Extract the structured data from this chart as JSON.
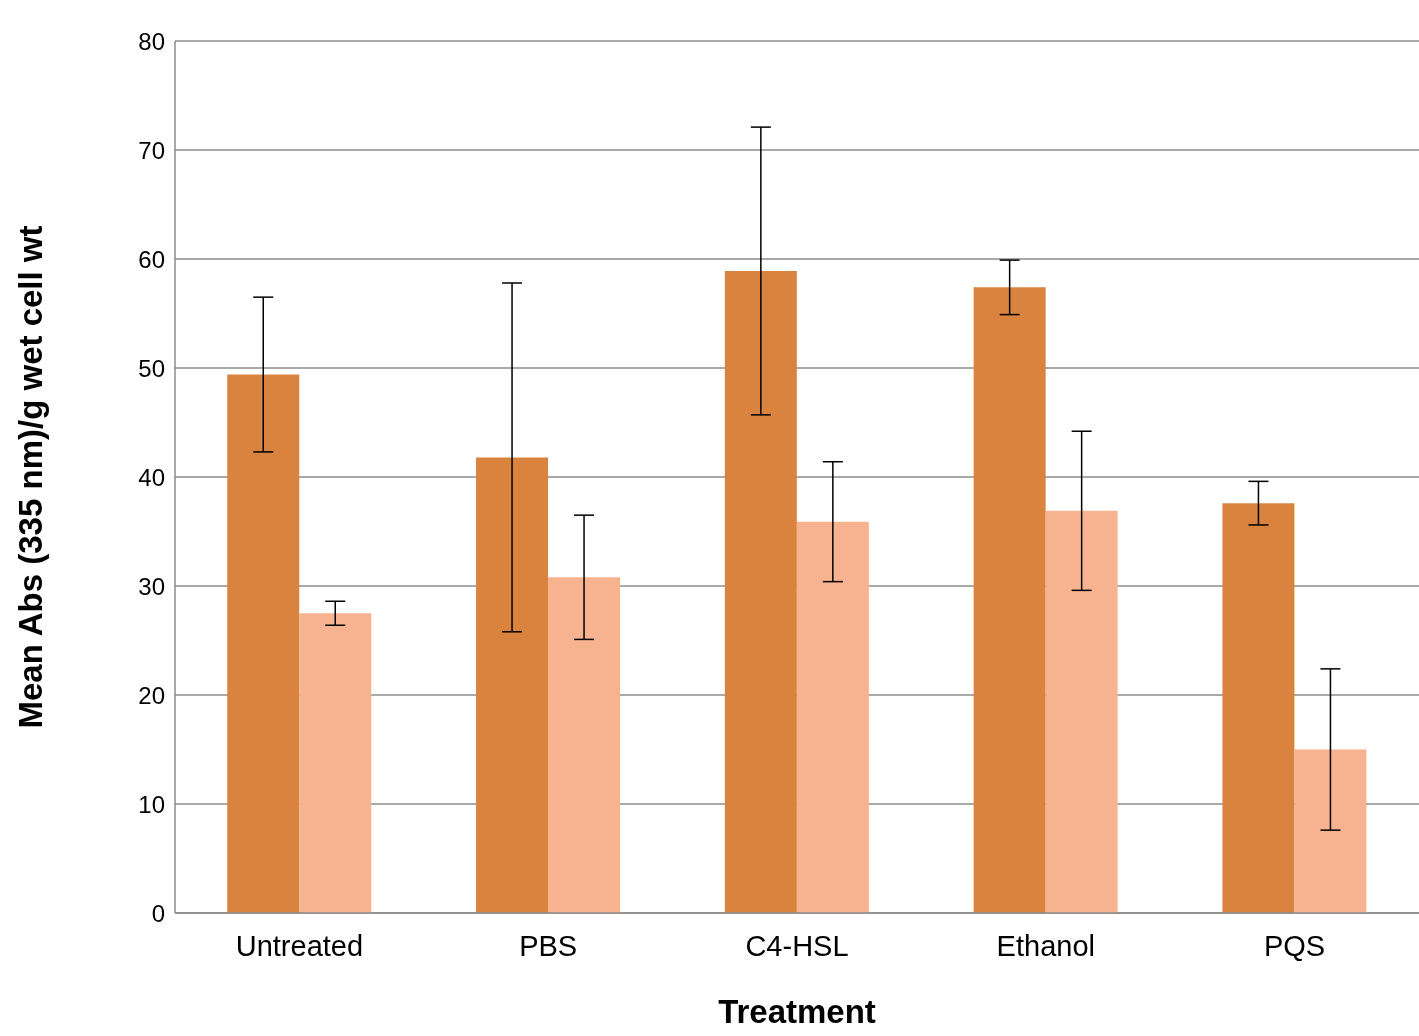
{
  "chart_data": {
    "type": "bar",
    "xlabel": "Treatment",
    "ylabel": "Mean Abs  (335 nm)/g wet cell wt",
    "categories": [
      "Untreated",
      "PBS",
      "C4-HSL",
      "Ethanol",
      "PQS"
    ],
    "series": [
      {
        "color": "#d9833e",
        "values": [
          49.4,
          41.8,
          58.9,
          57.4,
          37.6
        ],
        "errors": [
          7.1,
          16,
          13.2,
          2.5,
          2
        ]
      },
      {
        "color": "#f7b38f",
        "values": [
          27.5,
          30.8,
          35.9,
          36.9,
          15.0
        ],
        "errors": [
          1.1,
          5.7,
          5.5,
          7.3,
          7.4
        ]
      }
    ],
    "ylim": [
      0,
      80
    ],
    "yticks": [
      0,
      10,
      20,
      30,
      40,
      50,
      60,
      70,
      80
    ],
    "grid": "y"
  }
}
